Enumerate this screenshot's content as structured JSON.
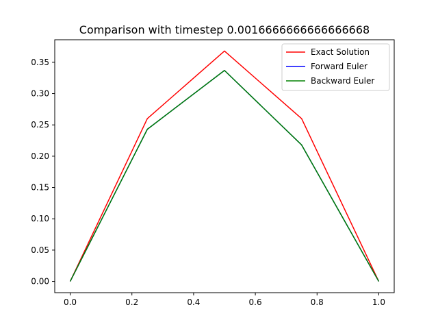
{
  "chart_data": {
    "type": "line",
    "title": "Comparison with timestep 0.0016666666666666668",
    "xlabel": "",
    "ylabel": "",
    "xlim": [
      -0.05,
      1.05
    ],
    "ylim": [
      -0.018,
      0.386
    ],
    "xticks": [
      0.0,
      0.2,
      0.4,
      0.6,
      0.8,
      1.0
    ],
    "xtick_labels": [
      "0.0",
      "0.2",
      "0.4",
      "0.6",
      "0.8",
      "1.0"
    ],
    "yticks": [
      0.0,
      0.05,
      0.1,
      0.15,
      0.2,
      0.25,
      0.3,
      0.35
    ],
    "ytick_labels": [
      "0.00",
      "0.05",
      "0.10",
      "0.15",
      "0.20",
      "0.25",
      "0.30",
      "0.35"
    ],
    "grid": false,
    "legend_position": "top-right",
    "x": [
      0.0,
      0.25,
      0.5,
      0.75,
      1.0
    ],
    "series": [
      {
        "name": "Exact Solution",
        "color": "#ff0000",
        "values": [
          0.0,
          0.26,
          0.368,
          0.26,
          0.0
        ]
      },
      {
        "name": "Forward Euler",
        "color": "#0000ff",
        "values": [
          0.0,
          0.243,
          0.337,
          0.218,
          0.0
        ]
      },
      {
        "name": "Backward Euler",
        "color": "#008000",
        "values": [
          0.0,
          0.243,
          0.337,
          0.218,
          0.0
        ]
      }
    ]
  }
}
